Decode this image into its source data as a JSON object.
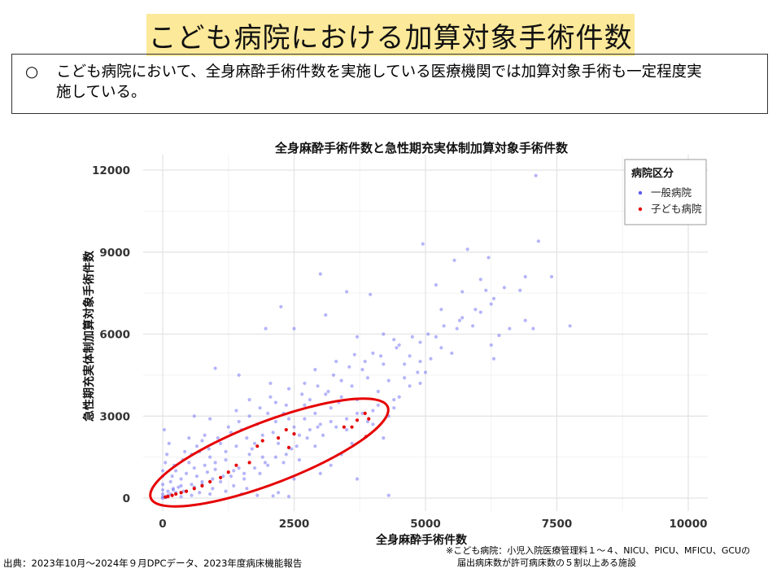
{
  "header": {
    "title": "こども病院における加算対象手術件数"
  },
  "summary": {
    "bullet": "○",
    "line1": "こども病院において、全身麻酔手術件数を実施している医療機関では加算対象手術も一定程度実",
    "line2": "施している。"
  },
  "chart_data": {
    "type": "scatter",
    "title": "全身麻酔手術件数と急性期充実体制加算対象手術件数",
    "xlabel": "全身麻酔手術件数",
    "ylabel": "急性期充実体制加算対象手術件数",
    "xlim": [
      -300,
      10300
    ],
    "ylim": [
      -500,
      12200
    ],
    "xticks": [
      0,
      2500,
      5000,
      7500,
      10000
    ],
    "xtick_labels": [
      "0",
      "2500",
      "5000",
      "7500",
      "10000"
    ],
    "yticks": [
      0,
      3000,
      6000,
      9000,
      12000
    ],
    "ytick_labels": [
      "0",
      "3000",
      "6000",
      "9000",
      "12000"
    ],
    "grid": true,
    "legend": {
      "title": "病院区分",
      "placement": "top-right"
    },
    "colors": {
      "general": "#5b5bf5",
      "children": "#e60000",
      "ellipse": "#e60000"
    },
    "series": [
      {
        "name": "一般病院",
        "points": [
          [
            7100,
            11800
          ],
          [
            7150,
            9400
          ],
          [
            4950,
            9300
          ],
          [
            5800,
            9100
          ],
          [
            5550,
            8700
          ],
          [
            6200,
            8800
          ],
          [
            6900,
            8100
          ],
          [
            7400,
            8100
          ],
          [
            6050,
            8000
          ],
          [
            6500,
            7700
          ],
          [
            5200,
            7800
          ],
          [
            6800,
            7600
          ],
          [
            5700,
            7550
          ],
          [
            6150,
            7600
          ],
          [
            3500,
            7550
          ],
          [
            3950,
            7450
          ],
          [
            6300,
            7300
          ],
          [
            7750,
            6300
          ],
          [
            6600,
            6200
          ],
          [
            6900,
            6500
          ],
          [
            7050,
            6200
          ],
          [
            6400,
            5950
          ],
          [
            6050,
            6800
          ],
          [
            5700,
            6600
          ],
          [
            5300,
            6900
          ],
          [
            5900,
            6300
          ],
          [
            5600,
            6200
          ],
          [
            6250,
            5600
          ],
          [
            6300,
            5100
          ],
          [
            3000,
            8200
          ],
          [
            2250,
            7000
          ],
          [
            3100,
            6700
          ],
          [
            2500,
            6200
          ],
          [
            1960,
            6200
          ],
          [
            4200,
            6000
          ],
          [
            3700,
            5900
          ],
          [
            4500,
            5600
          ],
          [
            4900,
            5700
          ],
          [
            5200,
            5900
          ],
          [
            4700,
            5200
          ],
          [
            4400,
            5800
          ],
          [
            4000,
            5300
          ],
          [
            3300,
            5000
          ],
          [
            3650,
            5250
          ],
          [
            4200,
            4900
          ],
          [
            2900,
            4700
          ],
          [
            3900,
            4400
          ],
          [
            4850,
            4600
          ],
          [
            1000,
            4750
          ],
          [
            1450,
            4500
          ],
          [
            2700,
            4200
          ],
          [
            3400,
            4300
          ],
          [
            4300,
            4300
          ],
          [
            4600,
            4900
          ],
          [
            5100,
            5100
          ],
          [
            3800,
            4700
          ],
          [
            3600,
            4100
          ],
          [
            3150,
            3900
          ],
          [
            2400,
            4000
          ],
          [
            2050,
            4200
          ],
          [
            1650,
            3600
          ],
          [
            600,
            3000
          ],
          [
            2150,
            3500
          ],
          [
            2800,
            3600
          ],
          [
            3350,
            3500
          ],
          [
            4100,
            3900
          ],
          [
            4500,
            3700
          ],
          [
            2300,
            3100
          ],
          [
            3200,
            3300
          ],
          [
            1400,
            3200
          ],
          [
            900,
            2900
          ],
          [
            3000,
            2700
          ],
          [
            2500,
            2600
          ],
          [
            3700,
            3100
          ],
          [
            4400,
            3300
          ],
          [
            4900,
            4200
          ],
          [
            5500,
            5300
          ],
          [
            4300,
            3000
          ],
          [
            1800,
            2700
          ],
          [
            2600,
            2300
          ],
          [
            3900,
            2800
          ],
          [
            4000,
            3200
          ],
          [
            2900,
            3100
          ],
          [
            3500,
            2500
          ],
          [
            1300,
            2400
          ],
          [
            800,
            2300
          ],
          [
            1600,
            2200
          ],
          [
            2100,
            2400
          ],
          [
            2200,
            2000
          ],
          [
            4000,
            2700
          ],
          [
            3300,
            2600
          ],
          [
            2000,
            3100
          ],
          [
            2700,
            2900
          ],
          [
            3050,
            2300
          ],
          [
            1700,
            1800
          ],
          [
            2450,
            1800
          ],
          [
            3600,
            2000
          ],
          [
            4200,
            2200
          ],
          [
            1100,
            2000
          ],
          [
            500,
            2200
          ],
          [
            1500,
            2500
          ],
          [
            2900,
            1900
          ],
          [
            3400,
            1600
          ],
          [
            1900,
            1500
          ],
          [
            2600,
            1400
          ],
          [
            3200,
            1200
          ],
          [
            4300,
            100
          ],
          [
            2200,
            200
          ],
          [
            3700,
            700
          ],
          [
            2500,
            700
          ],
          [
            3000,
            900
          ],
          [
            1200,
            1400
          ],
          [
            1450,
            1100
          ],
          [
            1650,
            1600
          ],
          [
            900,
            1500
          ],
          [
            700,
            1700
          ],
          [
            1000,
            1050
          ],
          [
            1300,
            800
          ],
          [
            1550,
            700
          ],
          [
            1850,
            900
          ],
          [
            2000,
            1200
          ],
          [
            2300,
            1300
          ],
          [
            1750,
            2000
          ],
          [
            1900,
            2300
          ],
          [
            2400,
            2900
          ],
          [
            2700,
            3400
          ],
          [
            3100,
            3800
          ],
          [
            3400,
            3700
          ],
          [
            3700,
            3600
          ],
          [
            2800,
            2500
          ],
          [
            2150,
            2800
          ],
          [
            1400,
            1900
          ],
          [
            1200,
            1700
          ],
          [
            1000,
            1300
          ],
          [
            800,
            1200
          ],
          [
            600,
            1100
          ],
          [
            450,
            900
          ],
          [
            350,
            700
          ],
          [
            500,
            1300
          ],
          [
            650,
            800
          ],
          [
            850,
            950
          ],
          [
            1100,
            600
          ],
          [
            1350,
            450
          ],
          [
            1600,
            350
          ],
          [
            300,
            400
          ],
          [
            200,
            300
          ],
          [
            150,
            150
          ],
          [
            100,
            100
          ],
          [
            250,
            200
          ],
          [
            400,
            250
          ],
          [
            600,
            400
          ],
          [
            750,
            500
          ],
          [
            950,
            350
          ],
          [
            1200,
            250
          ],
          [
            1500,
            150
          ],
          [
            1800,
            100
          ],
          [
            2100,
            80
          ],
          [
            2400,
            60
          ],
          [
            900,
            150
          ],
          [
            700,
            200
          ],
          [
            550,
            100
          ],
          [
            350,
            50
          ],
          [
            0,
            0
          ],
          [
            0,
            150
          ],
          [
            0,
            300
          ],
          [
            0,
            500
          ],
          [
            0,
            800
          ],
          [
            0,
            1000
          ],
          [
            50,
            1300
          ],
          [
            80,
            1600
          ],
          [
            120,
            2000
          ],
          [
            30,
            2500
          ],
          [
            0,
            50
          ],
          [
            60,
            20
          ],
          [
            150,
            600
          ],
          [
            250,
            1000
          ],
          [
            180,
            800
          ],
          [
            220,
            1200
          ],
          [
            380,
            1400
          ],
          [
            420,
            1700
          ],
          [
            650,
            1900
          ],
          [
            750,
            2100
          ],
          [
            550,
            1600
          ],
          [
            880,
            1800
          ],
          [
            1050,
            2200
          ],
          [
            1250,
            2600
          ],
          [
            1450,
            2800
          ],
          [
            1650,
            3000
          ],
          [
            1850,
            3300
          ],
          [
            2050,
            3700
          ],
          [
            2350,
            3400
          ],
          [
            2650,
            3800
          ],
          [
            2950,
            4100
          ],
          [
            3250,
            4500
          ],
          [
            3550,
            4800
          ],
          [
            3850,
            5000
          ],
          [
            4150,
            5200
          ],
          [
            4450,
            5500
          ],
          [
            4750,
            5900
          ],
          [
            5050,
            6000
          ],
          [
            5350,
            6300
          ],
          [
            5650,
            6500
          ],
          [
            5950,
            6900
          ],
          [
            6250,
            7100
          ],
          [
            4600,
            4400
          ],
          [
            4900,
            5000
          ],
          [
            5300,
            5500
          ],
          [
            5000,
            4600
          ],
          [
            4700,
            4100
          ],
          [
            4400,
            3600
          ],
          [
            4100,
            3400
          ],
          [
            3800,
            3100
          ],
          [
            3500,
            2900
          ],
          [
            3200,
            2800
          ],
          [
            2950,
            2600
          ],
          [
            2750,
            2200
          ],
          [
            2550,
            1900
          ],
          [
            2350,
            1600
          ],
          [
            2150,
            1500
          ],
          [
            1950,
            1300
          ],
          [
            1750,
            1100
          ],
          [
            1550,
            900
          ],
          [
            1350,
            1000
          ],
          [
            1150,
            800
          ],
          [
            950,
            700
          ],
          [
            750,
            600
          ],
          [
            550,
            500
          ],
          [
            350,
            450
          ],
          [
            200,
            350
          ],
          [
            100,
            250
          ]
        ]
      },
      {
        "name": "子ども病院",
        "points": [
          [
            3850,
            3100
          ],
          [
            3920,
            2900
          ],
          [
            3700,
            2850
          ],
          [
            3450,
            2600
          ],
          [
            3600,
            2600
          ],
          [
            3870,
            2250
          ],
          [
            2350,
            2500
          ],
          [
            2500,
            2350
          ],
          [
            2200,
            2200
          ],
          [
            2400,
            1850
          ],
          [
            1900,
            2100
          ],
          [
            1800,
            1900
          ],
          [
            1650,
            1300
          ],
          [
            1400,
            1200
          ],
          [
            1250,
            950
          ],
          [
            1100,
            750
          ],
          [
            900,
            600
          ],
          [
            750,
            450
          ],
          [
            600,
            350
          ],
          [
            450,
            250
          ],
          [
            350,
            200
          ],
          [
            250,
            150
          ],
          [
            180,
            100
          ],
          [
            100,
            60
          ],
          [
            50,
            40
          ]
        ]
      }
    ]
  },
  "footer": {
    "source": "出典：2023年10月～2024年９月DPCデータ、2023年度病床機能報告",
    "note_line1": "※こども病院：小児入院医療管理料１～４、NICU、PICU、MFICU、GCUの",
    "note_line2": "届出病床数が許可病床数の５割以上ある施設"
  }
}
